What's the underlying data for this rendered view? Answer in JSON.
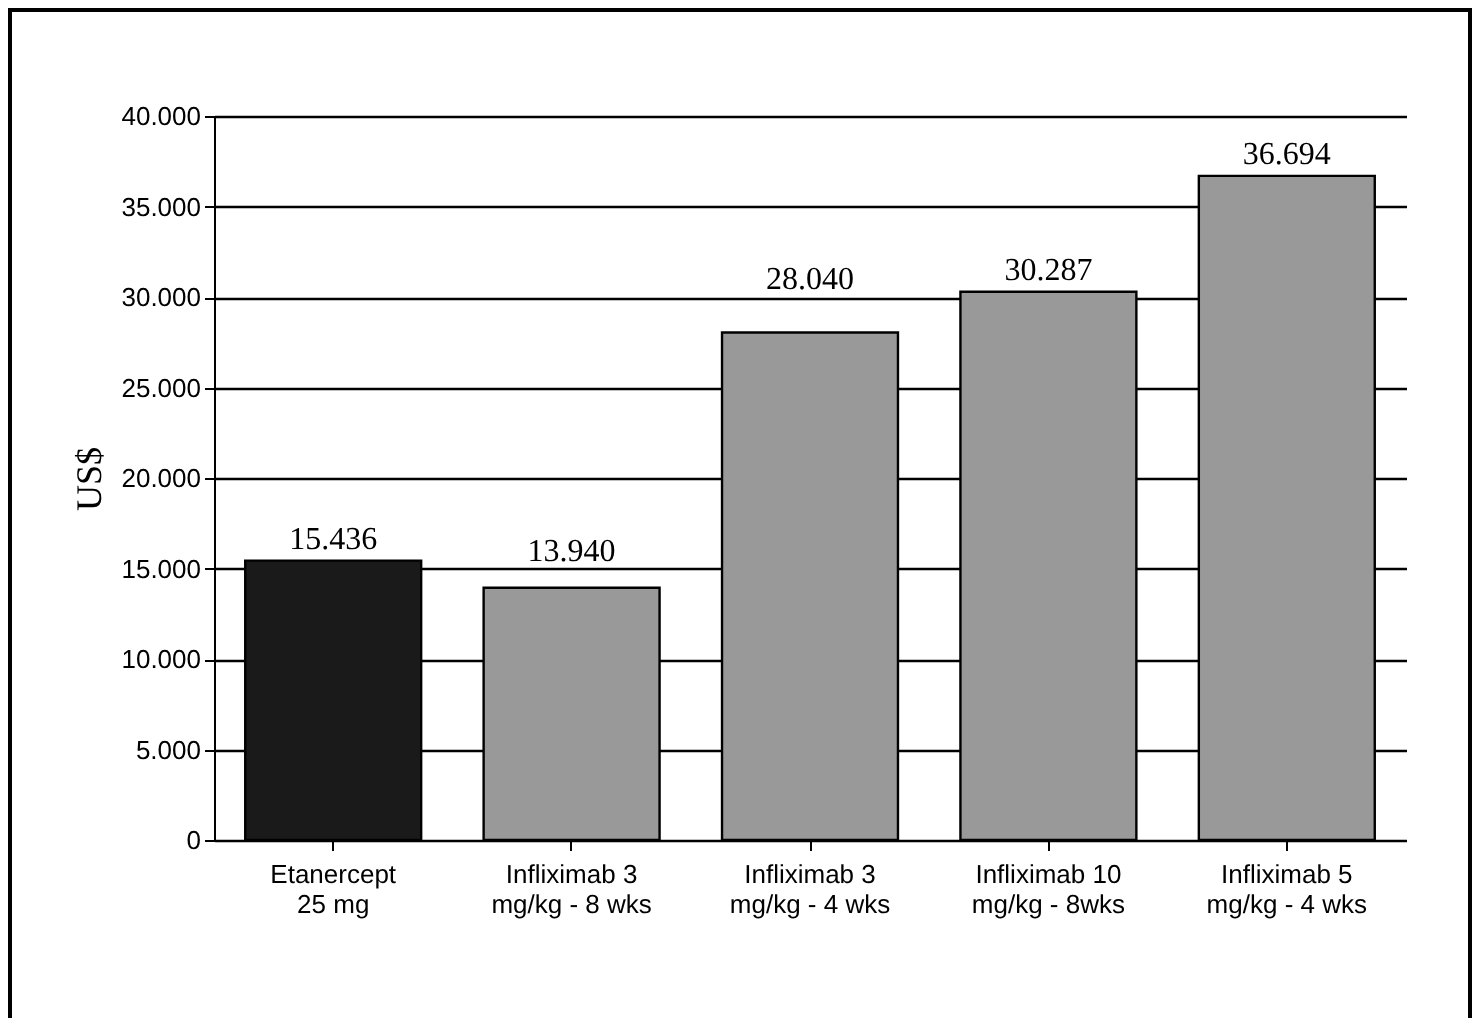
{
  "chart_data": {
    "type": "bar",
    "ylabel": "US$",
    "categories": [
      "Etanercept\n25 mg",
      "Infliximab 3\nmg/kg - 8 wks",
      "Infliximab 3\nmg/kg - 4 wks",
      "Infliximab 10\nmg/kg - 8wks",
      "Infliximab 5\nmg/kg - 4 wks"
    ],
    "values": [
      15436,
      13940,
      28040,
      30287,
      36694
    ],
    "value_labels": [
      "15.436",
      "13.940",
      "28.040",
      "30.287",
      "36.694"
    ],
    "colors": [
      "#1a1a1a",
      "#999999",
      "#999999",
      "#999999",
      "#999999"
    ],
    "ylim": [
      0,
      40000
    ],
    "yticks": [
      0,
      {
        "value": 5000,
        "label": "5.000"
      },
      {
        "value": 10000,
        "label": "10.000"
      },
      {
        "value": 15000,
        "label": "15.000"
      },
      {
        "value": 20000,
        "label": "20.000"
      },
      {
        "value": 25000,
        "label": "25.000"
      },
      {
        "value": 30000,
        "label": "30.000"
      },
      {
        "value": 35000,
        "label": "35.000"
      },
      {
        "value": 40000,
        "label": "40.000"
      }
    ],
    "grid": "y"
  }
}
